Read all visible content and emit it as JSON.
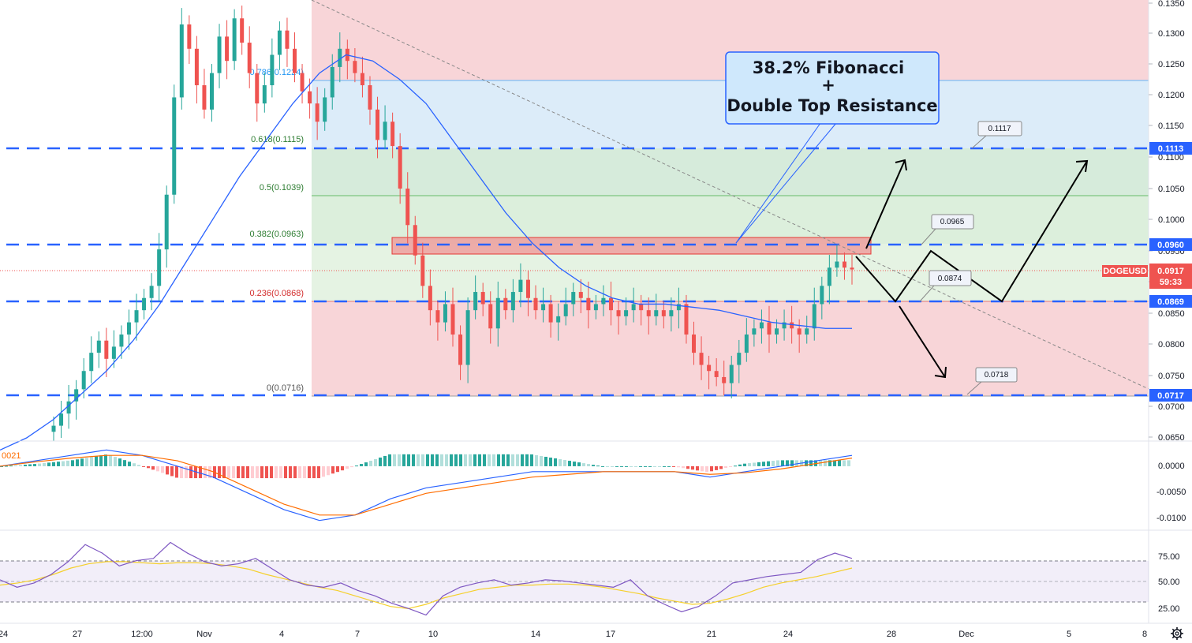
{
  "symbol": "DOGEUSD",
  "colors": {
    "up": "#26a69a",
    "down": "#ef5350",
    "ma": "#2962ff",
    "dashed": "#2962ff",
    "tag_blue": "#2962ff",
    "tag_red": "#ef5350",
    "macd_line": "#2962ff",
    "signal_line": "#ff6d00",
    "rsi_line": "#7e57c2",
    "rsi_ma": "#f5d02c"
  },
  "callout": {
    "line1": "38.2% Fibonacci",
    "line2": "+",
    "line3": "Double Top Resistance"
  },
  "fib_labels": [
    {
      "level": 0.1224,
      "text": "0.786(0.1224)",
      "color": "#2196f3"
    },
    {
      "level": 0.1115,
      "text": "0.618(0.1115)",
      "color": "#2e7d32"
    },
    {
      "level": 0.1039,
      "text": "0.5(0.1039)",
      "color": "#2e7d32"
    },
    {
      "level": 0.0963,
      "text": "0.382(0.0963)",
      "color": "#2e7d32"
    },
    {
      "level": 0.0868,
      "text": "0.236(0.0868)",
      "color": "#d32f2f"
    },
    {
      "level": 0.0716,
      "text": "0(0.0716)",
      "color": "#555555"
    }
  ],
  "price_tags": [
    {
      "value": 0.1113,
      "text": "0.1113",
      "color": "#2962ff"
    },
    {
      "value": 0.096,
      "text": "0.0960",
      "color": "#2962ff"
    },
    {
      "value": 0.0869,
      "text": "0.0869",
      "color": "#2962ff"
    },
    {
      "value": 0.0717,
      "text": "0.0717",
      "color": "#2962ff"
    }
  ],
  "current_price": {
    "symbol": "DOGEUSD",
    "value": "0.0917",
    "countdown": "59:33"
  },
  "notes": [
    {
      "text": "0.1117"
    },
    {
      "text": "0.0965"
    },
    {
      "text": "0.0874"
    },
    {
      "text": "0.0718"
    }
  ],
  "macd_left_label": "0021",
  "chart_data": [
    {
      "type": "candlestick",
      "title": "",
      "x_ticks": [
        "24",
        "27",
        "12:00",
        "Nov",
        "4",
        "7",
        "10",
        "14",
        "17",
        "21",
        "24",
        "28",
        "Dec",
        "5",
        "8"
      ],
      "y_ticks": [
        "0.1350",
        "0.1300",
        "0.1250",
        "0.1200",
        "0.1150",
        "0.1100",
        "0.1050",
        "0.1000",
        "0.0950",
        "0.0900",
        "0.0850",
        "0.0800",
        "0.0750",
        "0.0700",
        "0.0650"
      ],
      "ylim": [
        0.064,
        0.1355
      ],
      "close_series": [
        0.066,
        0.068,
        0.07,
        0.072,
        0.075,
        0.078,
        0.08,
        0.077,
        0.079,
        0.081,
        0.083,
        0.085,
        0.087,
        0.089,
        0.095,
        0.104,
        0.12,
        0.132,
        0.128,
        0.122,
        0.118,
        0.124,
        0.13,
        0.126,
        0.133,
        0.129,
        0.124,
        0.119,
        0.122,
        0.127,
        0.131,
        0.128,
        0.124,
        0.121,
        0.119,
        0.116,
        0.12,
        0.125,
        0.128,
        0.126,
        0.124,
        0.122,
        0.118,
        0.113,
        0.116,
        0.112,
        0.105,
        0.099,
        0.094,
        0.089,
        0.085,
        0.083,
        0.086,
        0.081,
        0.076,
        0.085,
        0.088,
        0.086,
        0.082,
        0.087,
        0.085,
        0.088,
        0.09,
        0.087,
        0.085,
        0.086,
        0.083,
        0.084,
        0.086,
        0.088,
        0.087,
        0.085,
        0.086,
        0.087,
        0.085,
        0.084,
        0.085,
        0.086,
        0.085,
        0.084,
        0.085,
        0.084,
        0.085,
        0.086,
        0.081,
        0.078,
        0.076,
        0.075,
        0.074,
        0.073,
        0.076,
        0.078,
        0.081,
        0.082,
        0.083,
        0.081,
        0.082,
        0.083,
        0.082,
        0.081,
        0.082,
        0.086,
        0.089,
        0.092,
        0.093,
        0.092,
        0.0917
      ],
      "ma_series": [
        0.062,
        0.064,
        0.067,
        0.071,
        0.075,
        0.08,
        0.086,
        0.093,
        0.1,
        0.107,
        0.113,
        0.119,
        0.124,
        0.127,
        0.126,
        0.123,
        0.119,
        0.113,
        0.107,
        0.101,
        0.096,
        0.092,
        0.089,
        0.087,
        0.086,
        0.086,
        0.0855,
        0.085,
        0.084,
        0.083,
        0.0825,
        0.082,
        0.082
      ],
      "legend": []
    },
    {
      "type": "line",
      "title": "",
      "y_ticks": [
        "0.0000",
        "-0.0050",
        "-0.0100"
      ],
      "series": [
        {
          "values": [
            0.0,
            0.001,
            0.002,
            0.003,
            0.002,
            0.0,
            -0.002,
            -0.005,
            -0.008,
            -0.01,
            -0.009,
            -0.006,
            -0.004,
            -0.003,
            -0.002,
            -0.001,
            -0.001,
            -0.001,
            -0.001,
            -0.001,
            -0.002,
            -0.001,
            0.0,
            0.001,
            0.002
          ]
        },
        {
          "values": [
            0.0,
            0.0008,
            0.0015,
            0.002,
            0.002,
            0.001,
            -0.001,
            -0.004,
            -0.007,
            -0.009,
            -0.009,
            -0.007,
            -0.005,
            -0.004,
            -0.003,
            -0.002,
            -0.0015,
            -0.001,
            -0.001,
            -0.001,
            -0.0015,
            -0.0012,
            -0.0005,
            0.0005,
            0.0015
          ]
        }
      ]
    },
    {
      "type": "line",
      "title": "",
      "y_ticks": [
        "75.00",
        "50.00",
        "25.00"
      ],
      "ylim": [
        15,
        100
      ],
      "band": [
        30,
        70
      ],
      "series": [
        {
          "values": [
            55,
            48,
            52,
            60,
            72,
            88,
            80,
            68,
            73,
            75,
            90,
            80,
            72,
            68,
            70,
            75,
            65,
            55,
            50,
            48,
            52,
            45,
            40,
            33,
            28,
            22,
            40,
            48,
            52,
            55,
            50,
            52,
            55,
            54,
            52,
            50,
            48,
            55,
            40,
            32,
            25,
            30,
            40,
            52,
            55,
            58,
            60,
            62,
            74,
            80,
            75
          ]
        },
        {
          "values": [
            50,
            52,
            55,
            60,
            66,
            70,
            72,
            72,
            71,
            70,
            71,
            71,
            70,
            68,
            65,
            60,
            56,
            52,
            48,
            45,
            40,
            35,
            30,
            28,
            32,
            38,
            42,
            46,
            48,
            50,
            50,
            51,
            51,
            50,
            48,
            45,
            42,
            38,
            35,
            32,
            33,
            37,
            42,
            48,
            52,
            55,
            58,
            62,
            66
          ]
        }
      ]
    }
  ]
}
